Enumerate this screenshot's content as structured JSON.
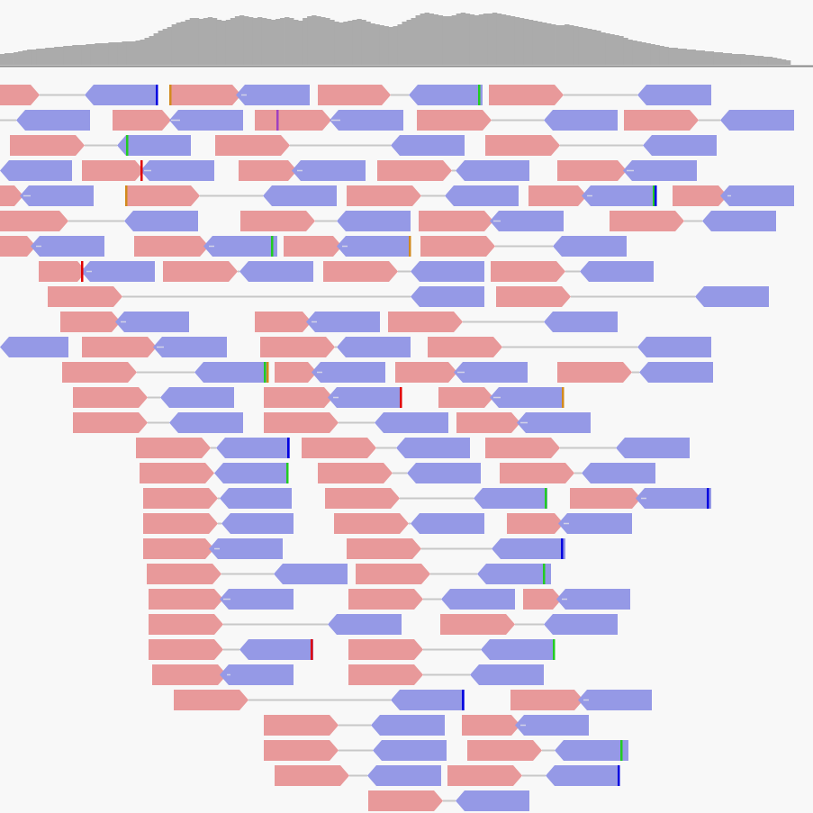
{
  "colors": {
    "background": "#f8f8f8",
    "coverage_fill": "#ababab",
    "coverage_baseline": "#8a8a8a",
    "forward_read": "#e8999a",
    "reverse_read": "#9599e6",
    "link_line": "#c8c8c8",
    "soft_mark": "#d2d2e8",
    "mismatch_A": "#22cc22",
    "mismatch_C": "#0000e0",
    "mismatch_G": "#d28a1e",
    "mismatch_T": "#e00000",
    "mismatch_other": "#a040c0"
  },
  "coverage": [
    12,
    13,
    13,
    14,
    15,
    16,
    17,
    17,
    18,
    18,
    19,
    19,
    20,
    20,
    21,
    21,
    22,
    22,
    22,
    23,
    23,
    24,
    24,
    24,
    25,
    25,
    25,
    26,
    26,
    26,
    27,
    28,
    30,
    32,
    35,
    38,
    40,
    42,
    45,
    47,
    48,
    50,
    52,
    52,
    51,
    52,
    53,
    52,
    50,
    49,
    50,
    52,
    54,
    55,
    54,
    53,
    52,
    53,
    52,
    51,
    50,
    51,
    52,
    53,
    52,
    50,
    49,
    52,
    54,
    55,
    54,
    53,
    52,
    50,
    48,
    47,
    48,
    49,
    50,
    51,
    50,
    48,
    46,
    45,
    44,
    43,
    42,
    43,
    45,
    48,
    50,
    52,
    55,
    57,
    58,
    57,
    56,
    55,
    54,
    54,
    55,
    57,
    58,
    57,
    56,
    55,
    56,
    57,
    57,
    58,
    57,
    56,
    55,
    54,
    53,
    52,
    51,
    50,
    49,
    48,
    47,
    46,
    45,
    44,
    44,
    45,
    44,
    43,
    42,
    41,
    40,
    39,
    38,
    36,
    35,
    34,
    33,
    32,
    30,
    28,
    27,
    26,
    25,
    24,
    23,
    22,
    21,
    20,
    19,
    19,
    18,
    18,
    17,
    17,
    16,
    16,
    15,
    15,
    14,
    14,
    13,
    13,
    12,
    12,
    12,
    11,
    11,
    10,
    10,
    9,
    9,
    8,
    7,
    6,
    5
  ],
  "pairs": [
    {
      "row": 0,
      "f": [
        0,
        44
      ],
      "r": [
        94,
        174
      ],
      "m": [
        [
          174,
          "C"
        ]
      ]
    },
    {
      "row": 0,
      "f": [
        188,
        268
      ],
      "r": [
        262,
        344
      ],
      "m": [
        [
          189,
          "G"
        ]
      ]
    },
    {
      "row": 0,
      "f": [
        353,
        434
      ],
      "r": [
        454,
        536
      ],
      "m": [
        [
          532,
          "A"
        ]
      ]
    },
    {
      "row": 0,
      "f": [
        543,
        626
      ],
      "r": [
        708,
        790
      ],
      "m": []
    },
    {
      "row": 1,
      "f": [
        0,
        0
      ],
      "r": [
        18,
        100
      ],
      "m": []
    },
    {
      "row": 1,
      "f": [
        125,
        190
      ],
      "r": [
        188,
        270
      ],
      "m": []
    },
    {
      "row": 1,
      "f": [
        283,
        368
      ],
      "r": [
        366,
        448
      ],
      "m": [
        [
          308,
          "X"
        ]
      ]
    },
    {
      "row": 1,
      "f": [
        463,
        546
      ],
      "r": [
        604,
        686
      ],
      "m": []
    },
    {
      "row": 1,
      "f": [
        693,
        776
      ],
      "r": [
        800,
        882
      ],
      "m": []
    },
    {
      "row": 2,
      "f": [
        11,
        94
      ],
      "r": [
        130,
        212
      ],
      "m": [
        [
          141,
          "A"
        ]
      ]
    },
    {
      "row": 2,
      "f": [
        239,
        322
      ],
      "r": [
        434,
        516
      ],
      "m": []
    },
    {
      "row": 2,
      "f": [
        539,
        622
      ],
      "r": [
        714,
        796
      ],
      "m": []
    },
    {
      "row": 3,
      "f": [
        0,
        0
      ],
      "r": [
        0,
        80
      ],
      "m": []
    },
    {
      "row": 3,
      "f": [
        91,
        160
      ],
      "r": [
        156,
        238
      ],
      "m": [
        [
          157,
          "T"
        ]
      ]
    },
    {
      "row": 3,
      "f": [
        265,
        330
      ],
      "r": [
        324,
        406
      ],
      "m": []
    },
    {
      "row": 3,
      "f": [
        419,
        502
      ],
      "r": [
        506,
        588
      ],
      "m": []
    },
    {
      "row": 3,
      "f": [
        619,
        696
      ],
      "r": [
        692,
        774
      ],
      "m": []
    },
    {
      "row": 4,
      "f": [
        0,
        26
      ],
      "r": [
        22,
        104
      ],
      "m": []
    },
    {
      "row": 4,
      "f": [
        139,
        222
      ],
      "r": [
        292,
        374
      ],
      "m": [
        [
          140,
          "G"
        ]
      ]
    },
    {
      "row": 4,
      "f": [
        385,
        468
      ],
      "r": [
        494,
        576
      ],
      "m": []
    },
    {
      "row": 4,
      "f": [
        587,
        652
      ],
      "r": [
        646,
        728
      ],
      "m": [
        [
          726,
          "A"
        ],
        [
          728,
          "C"
        ]
      ]
    },
    {
      "row": 4,
      "f": [
        747,
        808
      ],
      "r": [
        800,
        882
      ],
      "m": []
    },
    {
      "row": 5,
      "f": [
        0,
        76
      ],
      "r": [
        138,
        220
      ],
      "m": []
    },
    {
      "row": 5,
      "f": [
        267,
        350
      ],
      "r": [
        374,
        456
      ],
      "m": []
    },
    {
      "row": 5,
      "f": [
        465,
        548
      ],
      "r": [
        544,
        626
      ],
      "m": []
    },
    {
      "row": 5,
      "f": [
        677,
        760
      ],
      "r": [
        780,
        862
      ],
      "m": []
    },
    {
      "row": 6,
      "f": [
        0,
        40
      ],
      "r": [
        34,
        116
      ],
      "m": []
    },
    {
      "row": 6,
      "f": [
        149,
        232
      ],
      "r": [
        226,
        308
      ],
      "m": [
        [
          302,
          "A"
        ]
      ]
    },
    {
      "row": 6,
      "f": [
        315,
        380
      ],
      "r": [
        374,
        456
      ],
      "m": [
        [
          455,
          "G"
        ]
      ]
    },
    {
      "row": 6,
      "f": [
        467,
        550
      ],
      "r": [
        614,
        696
      ],
      "m": []
    },
    {
      "row": 7,
      "f": [
        43,
        96
      ],
      "r": [
        90,
        172
      ],
      "m": [
        [
          91,
          "T"
        ]
      ]
    },
    {
      "row": 7,
      "f": [
        181,
        264
      ],
      "r": [
        266,
        348
      ],
      "m": []
    },
    {
      "row": 7,
      "f": [
        359,
        442
      ],
      "r": [
        456,
        538
      ],
      "m": []
    },
    {
      "row": 7,
      "f": [
        545,
        628
      ],
      "r": [
        644,
        726
      ],
      "m": []
    },
    {
      "row": 8,
      "f": [
        53,
        136
      ],
      "r": [
        456,
        538
      ],
      "m": []
    },
    {
      "row": 8,
      "f": [
        551,
        634
      ],
      "r": [
        772,
        854
      ],
      "m": []
    },
    {
      "row": 9,
      "f": [
        67,
        134
      ],
      "r": [
        128,
        210
      ],
      "m": []
    },
    {
      "row": 9,
      "f": [
        283,
        346
      ],
      "r": [
        340,
        422
      ],
      "m": []
    },
    {
      "row": 9,
      "f": [
        431,
        514
      ],
      "r": [
        604,
        686
      ],
      "m": []
    },
    {
      "row": 10,
      "f": [
        0,
        0
      ],
      "r": [
        0,
        76
      ],
      "m": []
    },
    {
      "row": 10,
      "f": [
        91,
        174
      ],
      "r": [
        170,
        252
      ],
      "m": []
    },
    {
      "row": 10,
      "f": [
        289,
        372
      ],
      "r": [
        374,
        456
      ],
      "m": []
    },
    {
      "row": 10,
      "f": [
        475,
        558
      ],
      "r": [
        708,
        790
      ],
      "m": []
    },
    {
      "row": 11,
      "f": [
        69,
        152
      ],
      "r": [
        216,
        298
      ],
      "m": [
        [
          294,
          "A"
        ],
        [
          297,
          "G"
        ]
      ]
    },
    {
      "row": 11,
      "f": [
        305,
        352
      ],
      "r": [
        346,
        428
      ],
      "m": []
    },
    {
      "row": 11,
      "f": [
        439,
        508
      ],
      "r": [
        504,
        586
      ],
      "m": []
    },
    {
      "row": 11,
      "f": [
        619,
        702
      ],
      "r": [
        710,
        792
      ],
      "m": []
    },
    {
      "row": 12,
      "f": [
        81,
        164
      ],
      "r": [
        178,
        260
      ],
      "m": []
    },
    {
      "row": 12,
      "f": [
        293,
        370
      ],
      "r": [
        364,
        446
      ],
      "m": [
        [
          445,
          "T"
        ]
      ]
    },
    {
      "row": 12,
      "f": [
        487,
        548
      ],
      "r": [
        544,
        626
      ],
      "m": [
        [
          625,
          "G"
        ]
      ]
    },
    {
      "row": 13,
      "f": [
        81,
        164
      ],
      "r": [
        188,
        270
      ],
      "m": []
    },
    {
      "row": 13,
      "f": [
        293,
        376
      ],
      "r": [
        416,
        498
      ],
      "m": []
    },
    {
      "row": 13,
      "f": [
        507,
        578
      ],
      "r": [
        574,
        656
      ],
      "m": []
    },
    {
      "row": 14,
      "f": [
        151,
        234
      ],
      "r": [
        240,
        322
      ],
      "m": [
        [
          320,
          "C"
        ]
      ]
    },
    {
      "row": 14,
      "f": [
        335,
        418
      ],
      "r": [
        440,
        522
      ],
      "m": []
    },
    {
      "row": 14,
      "f": [
        539,
        622
      ],
      "r": [
        684,
        766
      ],
      "m": []
    },
    {
      "row": 15,
      "f": [
        155,
        238
      ],
      "r": [
        238,
        320
      ],
      "m": [
        [
          319,
          "A"
        ]
      ]
    },
    {
      "row": 15,
      "f": [
        353,
        436
      ],
      "r": [
        452,
        534
      ],
      "m": []
    },
    {
      "row": 15,
      "f": [
        555,
        638
      ],
      "r": [
        646,
        728
      ],
      "m": []
    },
    {
      "row": 16,
      "f": [
        159,
        242
      ],
      "r": [
        244,
        324
      ],
      "m": []
    },
    {
      "row": 16,
      "f": [
        361,
        444
      ],
      "r": [
        526,
        608
      ],
      "m": [
        [
          606,
          "A"
        ]
      ]
    },
    {
      "row": 16,
      "f": [
        633,
        712
      ],
      "r": [
        706,
        790
      ],
      "m": [
        [
          786,
          "C"
        ]
      ]
    },
    {
      "row": 17,
      "f": [
        159,
        242
      ],
      "r": [
        246,
        326
      ],
      "m": []
    },
    {
      "row": 17,
      "f": [
        371,
        454
      ],
      "r": [
        456,
        538
      ],
      "m": []
    },
    {
      "row": 17,
      "f": [
        563,
        626
      ],
      "r": [
        620,
        702
      ],
      "m": []
    },
    {
      "row": 18,
      "f": [
        159,
        238
      ],
      "r": [
        232,
        314
      ],
      "m": []
    },
    {
      "row": 18,
      "f": [
        385,
        468
      ],
      "r": [
        546,
        628
      ],
      "m": [
        [
          624,
          "C"
        ]
      ]
    },
    {
      "row": 19,
      "f": [
        163,
        246
      ],
      "r": [
        304,
        386
      ],
      "m": []
    },
    {
      "row": 19,
      "f": [
        395,
        478
      ],
      "r": [
        530,
        612
      ],
      "m": [
        [
          604,
          "A"
        ]
      ]
    },
    {
      "row": 20,
      "f": [
        165,
        248
      ],
      "r": [
        244,
        326
      ],
      "m": []
    },
    {
      "row": 20,
      "f": [
        387,
        470
      ],
      "r": [
        490,
        572
      ],
      "m": []
    },
    {
      "row": 20,
      "f": [
        581,
        624
      ],
      "r": [
        618,
        700
      ],
      "m": []
    },
    {
      "row": 21,
      "f": [
        165,
        248
      ],
      "r": [
        364,
        446
      ],
      "m": []
    },
    {
      "row": 21,
      "f": [
        489,
        572
      ],
      "r": [
        604,
        686
      ],
      "m": []
    },
    {
      "row": 22,
      "f": [
        165,
        248
      ],
      "r": [
        266,
        348
      ],
      "m": [
        [
          346,
          "T"
        ]
      ]
    },
    {
      "row": 22,
      "f": [
        387,
        470
      ],
      "r": [
        534,
        616
      ],
      "m": [
        [
          615,
          "A"
        ]
      ]
    },
    {
      "row": 23,
      "f": [
        169,
        252
      ],
      "r": [
        244,
        326
      ],
      "m": []
    },
    {
      "row": 23,
      "f": [
        387,
        470
      ],
      "r": [
        522,
        604
      ],
      "m": []
    },
    {
      "row": 24,
      "f": [
        193,
        276
      ],
      "r": [
        434,
        516
      ],
      "m": [
        [
          514,
          "C"
        ]
      ]
    },
    {
      "row": 24,
      "f": [
        567,
        648
      ],
      "r": [
        642,
        724
      ],
      "m": []
    },
    {
      "row": 25,
      "f": [
        293,
        376
      ],
      "r": [
        412,
        494
      ],
      "m": []
    },
    {
      "row": 25,
      "f": [
        513,
        578
      ],
      "r": [
        572,
        654
      ],
      "m": []
    },
    {
      "row": 26,
      "f": [
        293,
        376
      ],
      "r": [
        414,
        496
      ],
      "m": []
    },
    {
      "row": 26,
      "f": [
        519,
        602
      ],
      "r": [
        616,
        698
      ],
      "m": [
        [
          690,
          "A"
        ]
      ]
    },
    {
      "row": 27,
      "f": [
        305,
        388
      ],
      "r": [
        408,
        490
      ],
      "m": []
    },
    {
      "row": 27,
      "f": [
        497,
        580
      ],
      "r": [
        606,
        688
      ],
      "m": [
        [
          687,
          "C"
        ]
      ]
    },
    {
      "row": 28,
      "f": [
        409,
        492
      ],
      "r": [
        506,
        588
      ],
      "m": []
    }
  ]
}
